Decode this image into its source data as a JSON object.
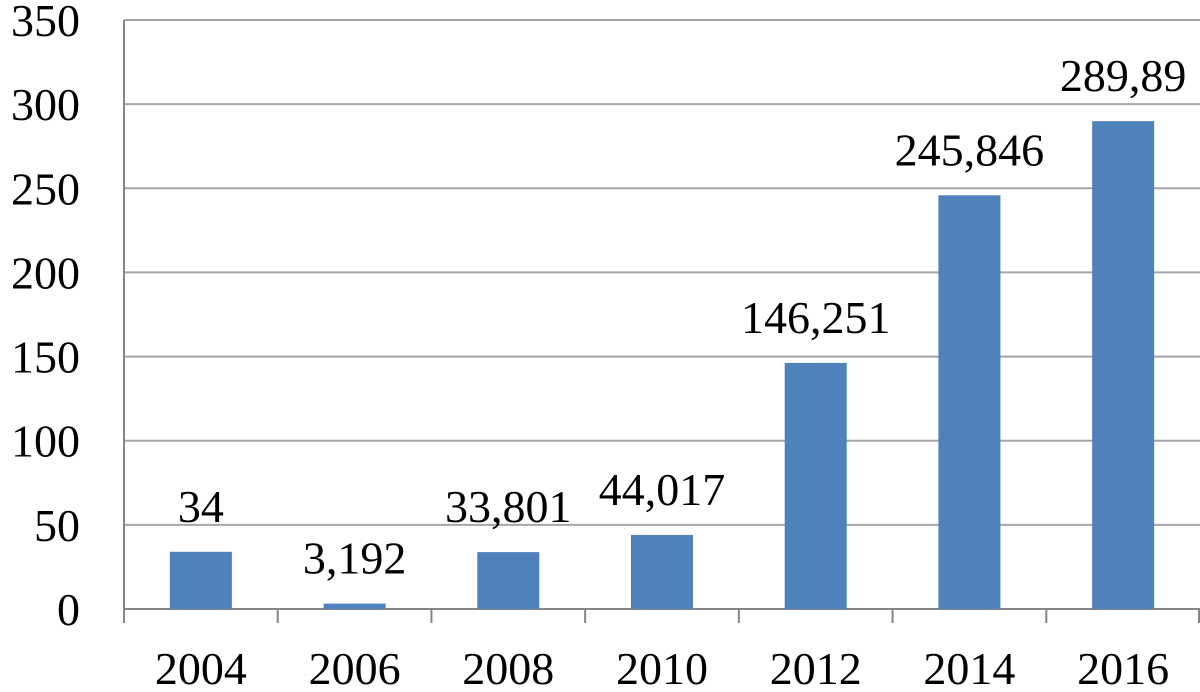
{
  "chart_data": {
    "type": "bar",
    "title": "",
    "xlabel": "",
    "ylabel": "",
    "categories": [
      "2004",
      "2006",
      "2008",
      "2010",
      "2012",
      "2014",
      "2016"
    ],
    "values": [
      34,
      3.192,
      33.801,
      44.017,
      146.251,
      245.846,
      289.89
    ],
    "data_labels": [
      "34",
      "3,192",
      "33,801",
      "44,017",
      "146,251",
      "245,846",
      "289,89"
    ],
    "ylim": [
      0,
      350
    ],
    "yticks": [
      0,
      50,
      100,
      150,
      200,
      250,
      300,
      350
    ],
    "grid": true,
    "legend": "none",
    "colors": {
      "bar": "#4f81bd",
      "grid": "#a6a6a6",
      "axis": "#868686",
      "text": "#000000"
    }
  }
}
